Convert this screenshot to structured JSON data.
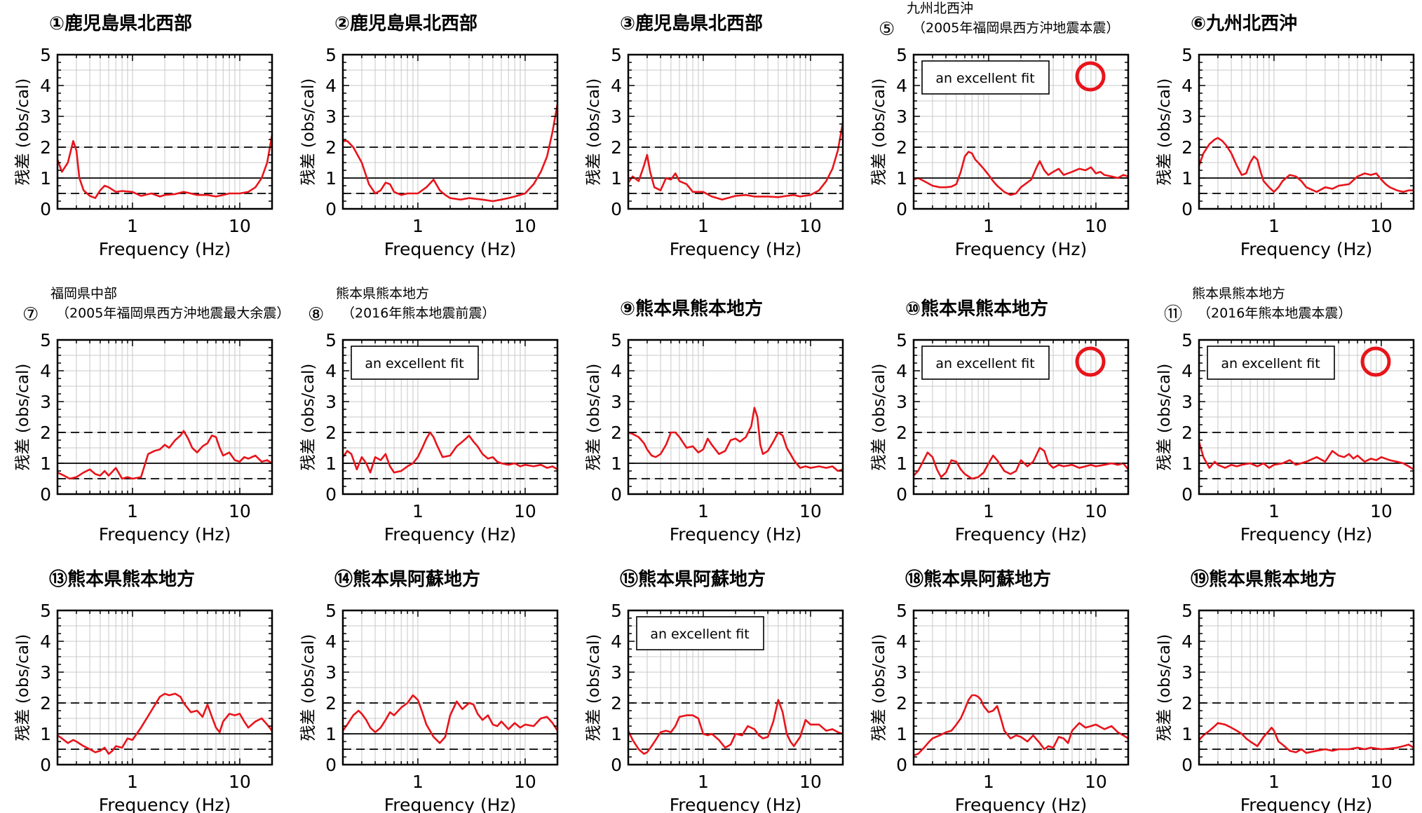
{
  "common": {
    "xlabel": "Frequency (Hz)",
    "ylabel": "残差 (obs/cal)",
    "xticks": [
      {
        "v": 1,
        "label": "1"
      },
      {
        "v": 10,
        "label": "10"
      }
    ],
    "yticks": [
      0,
      1,
      2,
      3,
      4,
      5
    ],
    "xlim": [
      0.2,
      20
    ],
    "ylim": [
      0,
      5
    ],
    "xscale": "log",
    "reference_lines": {
      "solid": [
        1
      ],
      "dashed": [
        0.5,
        2
      ]
    },
    "line_color": "#e8141b",
    "mark_color": "#e8141b"
  },
  "chart_data": [
    {
      "type": "line",
      "title_lines": [
        "①鹿児島県北西部"
      ],
      "x": [
        0.2,
        0.22,
        0.25,
        0.28,
        0.3,
        0.32,
        0.35,
        0.4,
        0.45,
        0.5,
        0.55,
        0.6,
        0.7,
        0.8,
        1,
        1.2,
        1.5,
        1.8,
        2,
        2.5,
        3,
        3.5,
        4,
        5,
        6,
        7,
        8,
        10,
        12,
        14,
        16,
        18,
        20
      ],
      "y": [
        1.6,
        1.2,
        1.5,
        2.2,
        1.9,
        1.0,
        0.6,
        0.42,
        0.35,
        0.6,
        0.75,
        0.7,
        0.55,
        0.58,
        0.55,
        0.42,
        0.5,
        0.4,
        0.45,
        0.48,
        0.55,
        0.5,
        0.45,
        0.45,
        0.4,
        0.45,
        0.5,
        0.5,
        0.55,
        0.7,
        1.0,
        1.5,
        2.4
      ]
    },
    {
      "type": "line",
      "title_lines": [
        "②鹿児島県北西部"
      ],
      "x": [
        0.2,
        0.22,
        0.25,
        0.3,
        0.35,
        0.4,
        0.45,
        0.5,
        0.55,
        0.6,
        0.7,
        0.8,
        1,
        1.2,
        1.4,
        1.6,
        1.8,
        2,
        2.5,
        3,
        4,
        5,
        6,
        7,
        8,
        10,
        12,
        14,
        16,
        18,
        20
      ],
      "y": [
        2.2,
        2.2,
        2.0,
        1.5,
        0.8,
        0.5,
        0.6,
        0.85,
        0.8,
        0.55,
        0.45,
        0.5,
        0.5,
        0.7,
        0.95,
        0.6,
        0.45,
        0.35,
        0.3,
        0.35,
        0.3,
        0.25,
        0.3,
        0.35,
        0.4,
        0.5,
        0.8,
        1.2,
        1.7,
        2.5,
        3.4
      ]
    },
    {
      "type": "line",
      "title_lines": [
        "③鹿児島県北西部"
      ],
      "x": [
        0.2,
        0.22,
        0.25,
        0.28,
        0.3,
        0.32,
        0.35,
        0.4,
        0.45,
        0.5,
        0.55,
        0.6,
        0.7,
        0.8,
        1,
        1.2,
        1.5,
        2,
        2.5,
        3,
        4,
        5,
        6,
        7,
        8,
        10,
        12,
        14,
        16,
        18,
        20
      ],
      "y": [
        0.85,
        1.05,
        0.9,
        1.4,
        1.75,
        1.2,
        0.7,
        0.6,
        1.0,
        0.95,
        1.15,
        0.9,
        0.8,
        0.55,
        0.55,
        0.4,
        0.3,
        0.42,
        0.45,
        0.4,
        0.4,
        0.38,
        0.42,
        0.45,
        0.4,
        0.45,
        0.6,
        0.9,
        1.3,
        1.9,
        2.8
      ]
    },
    {
      "type": "line",
      "title_lines": [
        "九州北西沖",
        "（2005年福岡県西方沖地震本震）"
      ],
      "title_prefix": "⑤",
      "annotation": "an excellent fit",
      "mark": "circle",
      "x": [
        0.2,
        0.22,
        0.25,
        0.3,
        0.35,
        0.4,
        0.45,
        0.5,
        0.55,
        0.6,
        0.65,
        0.7,
        0.75,
        0.8,
        0.9,
        1,
        1.1,
        1.2,
        1.4,
        1.6,
        1.8,
        2,
        2.5,
        2.8,
        3,
        3.3,
        3.6,
        4,
        4.5,
        5,
        6,
        7,
        8,
        9,
        10,
        11,
        12,
        14,
        16,
        18,
        20
      ],
      "y": [
        0.95,
        1.0,
        0.9,
        0.75,
        0.7,
        0.7,
        0.72,
        0.8,
        1.2,
        1.7,
        1.85,
        1.8,
        1.6,
        1.5,
        1.3,
        1.1,
        0.9,
        0.75,
        0.55,
        0.45,
        0.5,
        0.7,
        0.95,
        1.35,
        1.55,
        1.25,
        1.1,
        1.2,
        1.3,
        1.1,
        1.2,
        1.3,
        1.25,
        1.35,
        1.15,
        1.2,
        1.1,
        1.05,
        1.0,
        1.1,
        1.05
      ]
    },
    {
      "type": "line",
      "title_lines": [
        "⑥九州北西沖"
      ],
      "x": [
        0.2,
        0.22,
        0.25,
        0.28,
        0.3,
        0.33,
        0.36,
        0.4,
        0.45,
        0.5,
        0.55,
        0.6,
        0.65,
        0.7,
        0.75,
        0.8,
        0.9,
        1,
        1.1,
        1.2,
        1.4,
        1.6,
        1.8,
        2,
        2.5,
        3,
        3.5,
        4,
        5,
        6,
        7,
        8,
        9,
        10,
        11,
        12,
        14,
        16,
        18,
        20
      ],
      "y": [
        1.4,
        1.8,
        2.1,
        2.25,
        2.3,
        2.2,
        2.05,
        1.8,
        1.4,
        1.1,
        1.15,
        1.5,
        1.7,
        1.6,
        1.2,
        0.9,
        0.7,
        0.55,
        0.7,
        0.9,
        1.1,
        1.05,
        0.9,
        0.7,
        0.55,
        0.7,
        0.65,
        0.75,
        0.8,
        1.05,
        1.15,
        1.1,
        1.15,
        0.95,
        0.8,
        0.7,
        0.6,
        0.55,
        0.6,
        0.6
      ]
    },
    {
      "type": "line",
      "title_lines": [
        "福岡県中部",
        "（2005年福岡県西方沖地震最大余震）"
      ],
      "title_prefix": "⑦",
      "x": [
        0.2,
        0.23,
        0.26,
        0.3,
        0.35,
        0.4,
        0.45,
        0.5,
        0.55,
        0.6,
        0.7,
        0.8,
        0.9,
        1,
        1.2,
        1.4,
        1.6,
        1.8,
        2,
        2.2,
        2.5,
        2.8,
        3,
        3.3,
        3.6,
        4,
        4.5,
        5,
        5.5,
        6,
        6.5,
        7,
        8,
        9,
        10,
        11,
        12,
        14,
        16,
        18,
        20
      ],
      "y": [
        0.7,
        0.6,
        0.5,
        0.55,
        0.7,
        0.8,
        0.65,
        0.6,
        0.75,
        0.6,
        0.85,
        0.5,
        0.55,
        0.5,
        0.55,
        1.3,
        1.4,
        1.45,
        1.6,
        1.5,
        1.75,
        1.9,
        2.05,
        1.8,
        1.5,
        1.35,
        1.55,
        1.65,
        1.9,
        1.85,
        1.5,
        1.25,
        1.35,
        1.1,
        1.05,
        1.2,
        1.15,
        1.25,
        1.05,
        1.1,
        1.0
      ]
    },
    {
      "type": "line",
      "title_lines": [
        "熊本県熊本地方",
        "（2016年熊本地震前震）"
      ],
      "title_prefix": "⑧",
      "annotation": "an excellent fit",
      "x": [
        0.2,
        0.22,
        0.24,
        0.27,
        0.3,
        0.33,
        0.36,
        0.4,
        0.45,
        0.5,
        0.55,
        0.6,
        0.7,
        0.8,
        0.9,
        1,
        1.1,
        1.2,
        1.3,
        1.4,
        1.5,
        1.7,
        2,
        2.3,
        2.6,
        2.8,
        3,
        3.3,
        3.6,
        4,
        4.5,
        5,
        5.5,
        6,
        7,
        8,
        9,
        10,
        12,
        14,
        16,
        18,
        20
      ],
      "y": [
        1.2,
        1.4,
        1.3,
        0.8,
        1.2,
        1.0,
        0.7,
        1.2,
        1.1,
        1.3,
        0.9,
        0.7,
        0.75,
        0.9,
        1.0,
        1.2,
        1.5,
        1.8,
        2.0,
        1.85,
        1.6,
        1.2,
        1.25,
        1.55,
        1.7,
        1.8,
        1.9,
        1.7,
        1.55,
        1.3,
        1.15,
        1.2,
        1.05,
        1.0,
        0.95,
        1.0,
        0.9,
        0.95,
        0.9,
        0.95,
        0.85,
        0.9,
        0.8
      ]
    },
    {
      "type": "line",
      "title_lines": [
        "⑨熊本県熊本地方"
      ],
      "x": [
        0.2,
        0.22,
        0.25,
        0.28,
        0.3,
        0.33,
        0.36,
        0.4,
        0.45,
        0.5,
        0.55,
        0.6,
        0.7,
        0.8,
        0.9,
        1,
        1.1,
        1.2,
        1.4,
        1.6,
        1.8,
        2,
        2.2,
        2.5,
        2.8,
        3,
        3.2,
        3.4,
        3.6,
        4,
        4.5,
        5,
        5.5,
        6,
        6.5,
        7,
        8,
        9,
        10,
        12,
        14,
        16,
        18,
        20
      ],
      "y": [
        2.0,
        1.95,
        1.85,
        1.65,
        1.45,
        1.25,
        1.2,
        1.3,
        1.6,
        2.0,
        2.0,
        1.85,
        1.5,
        1.55,
        1.35,
        1.45,
        1.8,
        1.6,
        1.3,
        1.4,
        1.75,
        1.8,
        1.7,
        1.85,
        2.2,
        2.8,
        2.5,
        1.6,
        1.3,
        1.4,
        1.7,
        2.0,
        1.9,
        1.5,
        1.3,
        1.1,
        0.85,
        0.9,
        0.85,
        0.9,
        0.85,
        0.9,
        0.75,
        0.8
      ]
    },
    {
      "type": "line",
      "title_lines": [
        "⑩熊本県熊本地方"
      ],
      "annotation": "an excellent fit",
      "mark": "circle",
      "x": [
        0.2,
        0.22,
        0.24,
        0.27,
        0.3,
        0.33,
        0.36,
        0.4,
        0.45,
        0.5,
        0.55,
        0.6,
        0.7,
        0.8,
        0.9,
        1,
        1.1,
        1.2,
        1.4,
        1.6,
        1.8,
        2,
        2.3,
        2.6,
        3,
        3.3,
        3.6,
        4,
        4.5,
        5,
        6,
        7,
        8,
        9,
        10,
        12,
        14,
        16,
        18,
        20
      ],
      "y": [
        0.6,
        0.75,
        1.0,
        1.35,
        1.2,
        0.8,
        0.55,
        0.7,
        1.1,
        1.05,
        0.8,
        0.65,
        0.5,
        0.55,
        0.7,
        1.0,
        1.25,
        1.1,
        0.75,
        0.65,
        0.75,
        1.1,
        0.9,
        1.05,
        1.5,
        1.4,
        1.0,
        0.85,
        0.95,
        0.9,
        0.95,
        0.85,
        0.9,
        0.95,
        0.9,
        0.95,
        1.0,
        0.95,
        1.0,
        0.8
      ]
    },
    {
      "type": "line",
      "title_lines": [
        "熊本県熊本地方",
        "（2016年熊本地震本震）"
      ],
      "title_prefix": "⑪",
      "annotation": "an excellent fit",
      "mark": "circle",
      "x": [
        0.2,
        0.22,
        0.25,
        0.28,
        0.3,
        0.35,
        0.4,
        0.45,
        0.5,
        0.6,
        0.7,
        0.8,
        0.9,
        1,
        1.2,
        1.4,
        1.6,
        2,
        2.5,
        3,
        3.5,
        4,
        4.5,
        5,
        5.5,
        6,
        7,
        8,
        9,
        10,
        12,
        14,
        16,
        18,
        20
      ],
      "y": [
        1.7,
        1.2,
        0.85,
        1.05,
        0.95,
        0.85,
        0.95,
        0.9,
        0.95,
        1.0,
        0.9,
        1.0,
        0.85,
        0.95,
        1.0,
        1.1,
        0.95,
        1.05,
        1.2,
        1.05,
        1.4,
        1.25,
        1.2,
        1.3,
        1.15,
        1.25,
        1.05,
        1.15,
        1.1,
        1.2,
        1.1,
        1.05,
        1.0,
        0.9,
        0.8
      ]
    },
    {
      "type": "line",
      "title_lines": [
        "⑬熊本県熊本地方"
      ],
      "x": [
        0.2,
        0.22,
        0.25,
        0.28,
        0.3,
        0.35,
        0.4,
        0.45,
        0.5,
        0.55,
        0.6,
        0.65,
        0.7,
        0.8,
        0.9,
        1,
        1.2,
        1.5,
        1.8,
        2,
        2.2,
        2.5,
        2.8,
        3,
        3.5,
        4,
        4.5,
        5,
        5.5,
        6,
        6.5,
        7,
        8,
        9,
        10,
        11,
        12,
        14,
        16,
        18,
        20
      ],
      "y": [
        0.95,
        0.85,
        0.7,
        0.8,
        0.75,
        0.6,
        0.5,
        0.4,
        0.45,
        0.55,
        0.35,
        0.45,
        0.6,
        0.55,
        0.85,
        0.8,
        1.2,
        1.75,
        2.2,
        2.3,
        2.25,
        2.3,
        2.2,
        2.0,
        1.7,
        1.75,
        1.55,
        1.95,
        1.55,
        1.2,
        1.05,
        1.4,
        1.65,
        1.6,
        1.65,
        1.4,
        1.2,
        1.4,
        1.5,
        1.3,
        1.1
      ]
    },
    {
      "type": "line",
      "title_lines": [
        "⑭熊本県阿蘇地方"
      ],
      "x": [
        0.2,
        0.22,
        0.25,
        0.28,
        0.3,
        0.33,
        0.36,
        0.4,
        0.45,
        0.5,
        0.55,
        0.6,
        0.7,
        0.8,
        0.9,
        1,
        1.1,
        1.2,
        1.4,
        1.6,
        1.8,
        2,
        2.3,
        2.6,
        3,
        3.3,
        3.6,
        4,
        4.5,
        5,
        5.5,
        6,
        7,
        8,
        9,
        10,
        12,
        14,
        16,
        18,
        20
      ],
      "y": [
        1.1,
        1.3,
        1.6,
        1.75,
        1.65,
        1.45,
        1.2,
        1.05,
        1.2,
        1.45,
        1.7,
        1.6,
        1.85,
        2.0,
        2.25,
        2.1,
        1.7,
        1.3,
        0.9,
        0.7,
        0.9,
        1.6,
        2.05,
        1.8,
        2.0,
        1.95,
        1.65,
        1.45,
        1.6,
        1.3,
        1.25,
        1.4,
        1.15,
        1.35,
        1.2,
        1.3,
        1.25,
        1.5,
        1.55,
        1.35,
        1.1
      ]
    },
    {
      "type": "line",
      "title_lines": [
        "⑮熊本県阿蘇地方"
      ],
      "annotation": "an excellent fit",
      "x": [
        0.2,
        0.22,
        0.25,
        0.28,
        0.3,
        0.33,
        0.36,
        0.4,
        0.45,
        0.5,
        0.55,
        0.6,
        0.7,
        0.8,
        0.9,
        1,
        1.1,
        1.2,
        1.4,
        1.6,
        1.8,
        2,
        2.3,
        2.6,
        3,
        3.3,
        3.6,
        4,
        4.5,
        5,
        5.5,
        6,
        6.5,
        7,
        8,
        9,
        10,
        12,
        14,
        16,
        18,
        20
      ],
      "y": [
        1.1,
        0.8,
        0.5,
        0.35,
        0.4,
        0.6,
        0.8,
        1.05,
        1.1,
        1.05,
        1.25,
        1.55,
        1.6,
        1.6,
        1.5,
        1.0,
        0.95,
        1.0,
        0.8,
        0.55,
        0.65,
        1.0,
        0.95,
        1.25,
        1.15,
        0.95,
        0.85,
        0.9,
        1.4,
        2.1,
        1.7,
        1.0,
        0.75,
        0.6,
        0.9,
        1.45,
        1.3,
        1.3,
        1.1,
        1.15,
        1.05,
        1.0
      ]
    },
    {
      "type": "line",
      "title_lines": [
        "⑱熊本県阿蘇地方"
      ],
      "x": [
        0.2,
        0.22,
        0.25,
        0.28,
        0.3,
        0.35,
        0.4,
        0.45,
        0.5,
        0.55,
        0.6,
        0.65,
        0.7,
        0.75,
        0.8,
        0.85,
        0.9,
        1,
        1.1,
        1.2,
        1.3,
        1.4,
        1.6,
        1.8,
        2,
        2.3,
        2.6,
        3,
        3.3,
        3.6,
        4,
        4.5,
        5,
        5.5,
        6,
        7,
        8,
        9,
        10,
        12,
        14,
        16,
        18,
        20
      ],
      "y": [
        0.3,
        0.35,
        0.55,
        0.75,
        0.85,
        0.95,
        1.05,
        1.1,
        1.3,
        1.5,
        1.8,
        2.1,
        2.25,
        2.25,
        2.2,
        2.1,
        1.9,
        1.7,
        1.75,
        1.9,
        1.5,
        1.1,
        0.85,
        0.95,
        0.9,
        0.75,
        0.95,
        0.7,
        0.5,
        0.6,
        0.55,
        0.9,
        0.85,
        0.7,
        1.1,
        1.35,
        1.2,
        1.25,
        1.3,
        1.15,
        1.25,
        1.05,
        0.95,
        0.85
      ]
    },
    {
      "type": "line",
      "title_lines": [
        "⑲熊本県熊本地方"
      ],
      "x": [
        0.2,
        0.22,
        0.25,
        0.28,
        0.3,
        0.35,
        0.4,
        0.45,
        0.5,
        0.55,
        0.6,
        0.7,
        0.8,
        0.9,
        0.95,
        1,
        1.1,
        1.2,
        1.4,
        1.6,
        1.8,
        2,
        2.5,
        3,
        3.5,
        4,
        5,
        6,
        7,
        8,
        10,
        12,
        14,
        16,
        18,
        20
      ],
      "y": [
        0.8,
        0.95,
        1.1,
        1.25,
        1.35,
        1.3,
        1.2,
        1.1,
        1.0,
        0.85,
        0.75,
        0.6,
        0.9,
        1.1,
        1.2,
        1.1,
        0.75,
        0.65,
        0.45,
        0.4,
        0.5,
        0.38,
        0.45,
        0.5,
        0.45,
        0.5,
        0.5,
        0.55,
        0.5,
        0.55,
        0.5,
        0.52,
        0.55,
        0.6,
        0.65,
        0.55
      ]
    }
  ]
}
